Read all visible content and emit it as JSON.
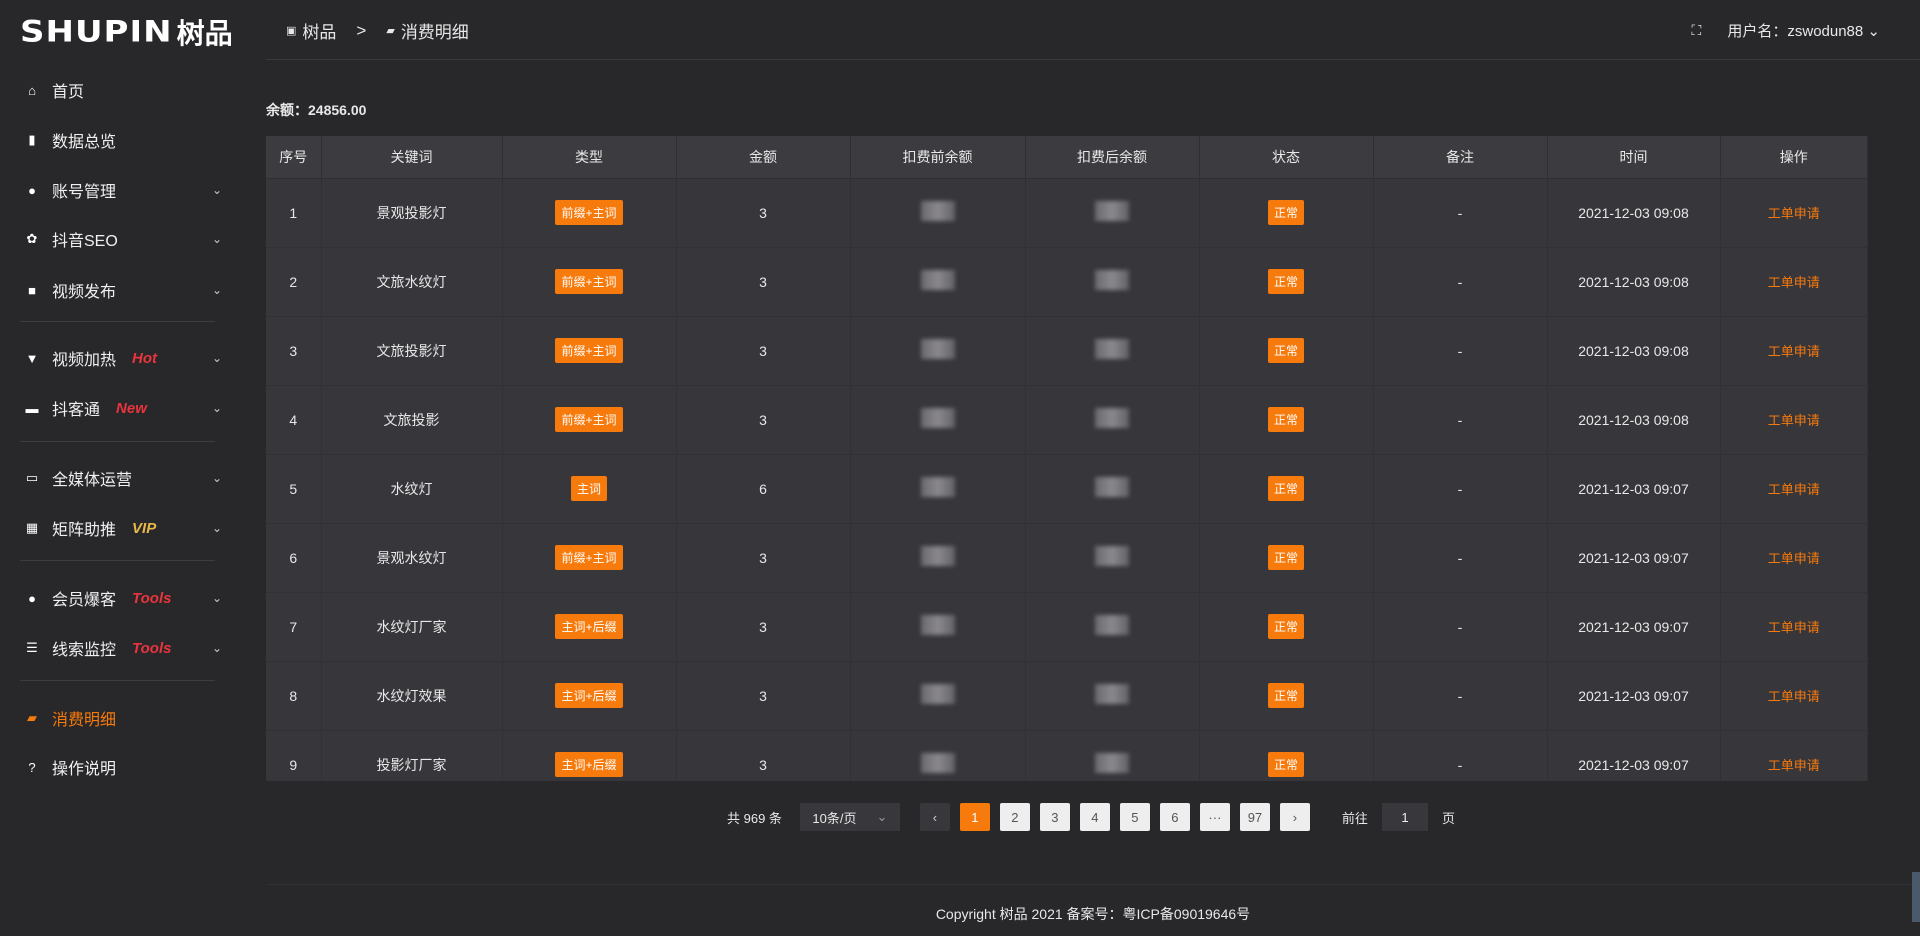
{
  "logo": {
    "en": "SHUPIN",
    "cn": "树品"
  },
  "sidebar": {
    "items": [
      {
        "label": "首页",
        "icon": "home-icon",
        "glyph": "⌂"
      },
      {
        "label": "数据总览",
        "icon": "bar-chart-icon",
        "glyph": "▮"
      },
      {
        "label": "账号管理",
        "icon": "user-icon",
        "glyph": "●",
        "chevron": true
      },
      {
        "label": "抖音SEO",
        "icon": "gear-icon",
        "glyph": "✿",
        "chevron": true
      },
      {
        "label": "视频发布",
        "icon": "video-camera-icon",
        "glyph": "■",
        "chevron": true
      },
      {
        "label": "视频加热",
        "icon": "heater-icon",
        "glyph": "▼",
        "badge": "Hot",
        "chevron": true
      },
      {
        "label": "抖客通",
        "icon": "chat-icon",
        "glyph": "▬",
        "badge": "New",
        "chevron": true
      },
      {
        "label": "全媒体运营",
        "icon": "monitor-icon",
        "glyph": "▭",
        "chevron": true
      },
      {
        "label": "矩阵助推",
        "icon": "grid-icon",
        "glyph": "▦",
        "badge": "VIP",
        "chevron": true
      },
      {
        "label": "会员爆客",
        "icon": "member-icon",
        "glyph": "●",
        "badge": "Tools",
        "chevron": true
      },
      {
        "label": "线索监控",
        "icon": "sliders-icon",
        "glyph": "☰",
        "badge": "Tools",
        "chevron": true
      },
      {
        "label": "消费明细",
        "icon": "wallet-icon",
        "glyph": "▰",
        "active": true
      },
      {
        "label": "操作说明",
        "icon": "help-icon",
        "glyph": "?"
      }
    ]
  },
  "header": {
    "crumb_root": "树品",
    "crumb_sep": ">",
    "crumb_current": "消费明细",
    "user_label": "用户名：zswodun88"
  },
  "balance": "余额：24856.00",
  "table": {
    "headers": [
      "序号",
      "关键词",
      "类型",
      "金额",
      "扣费前余额",
      "扣费后余额",
      "状态",
      "备注",
      "时间",
      "操作"
    ],
    "rows": [
      {
        "no": "1",
        "kw": "景观投影灯",
        "type": "前缀+主词",
        "amount": "3",
        "status": "正常",
        "note": "-",
        "time": "2021-12-03 09:08",
        "op": "工单申请"
      },
      {
        "no": "2",
        "kw": "文旅水纹灯",
        "type": "前缀+主词",
        "amount": "3",
        "status": "正常",
        "note": "-",
        "time": "2021-12-03 09:08",
        "op": "工单申请"
      },
      {
        "no": "3",
        "kw": "文旅投影灯",
        "type": "前缀+主词",
        "amount": "3",
        "status": "正常",
        "note": "-",
        "time": "2021-12-03 09:08",
        "op": "工单申请"
      },
      {
        "no": "4",
        "kw": "文旅投影",
        "type": "前缀+主词",
        "amount": "3",
        "status": "正常",
        "note": "-",
        "time": "2021-12-03 09:08",
        "op": "工单申请"
      },
      {
        "no": "5",
        "kw": "水纹灯",
        "type": "主词",
        "amount": "6",
        "status": "正常",
        "note": "-",
        "time": "2021-12-03 09:07",
        "op": "工单申请"
      },
      {
        "no": "6",
        "kw": "景观水纹灯",
        "type": "前缀+主词",
        "amount": "3",
        "status": "正常",
        "note": "-",
        "time": "2021-12-03 09:07",
        "op": "工单申请"
      },
      {
        "no": "7",
        "kw": "水纹灯厂家",
        "type": "主词+后缀",
        "amount": "3",
        "status": "正常",
        "note": "-",
        "time": "2021-12-03 09:07",
        "op": "工单申请"
      },
      {
        "no": "8",
        "kw": "水纹灯效果",
        "type": "主词+后缀",
        "amount": "3",
        "status": "正常",
        "note": "-",
        "time": "2021-12-03 09:07",
        "op": "工单申请"
      },
      {
        "no": "9",
        "kw": "投影灯厂家",
        "type": "主词+后缀",
        "amount": "3",
        "status": "正常",
        "note": "-",
        "time": "2021-12-03 09:07",
        "op": "工单申请"
      }
    ]
  },
  "pagination": {
    "total": "共 969 条",
    "page_size": "10条/页",
    "pages": [
      "1",
      "2",
      "3",
      "4",
      "5",
      "6",
      "···",
      "97"
    ],
    "current": "1",
    "goto_label": "前往",
    "goto_value": "1",
    "page_suffix": "页",
    "prev": "‹",
    "next": "›"
  },
  "footer": "Copyright 树品 2021 备案号：粤ICP备09019646号",
  "colors": {
    "accent": "#f77a0c",
    "hot": "#e8353d",
    "vip": "#e8b84a"
  }
}
